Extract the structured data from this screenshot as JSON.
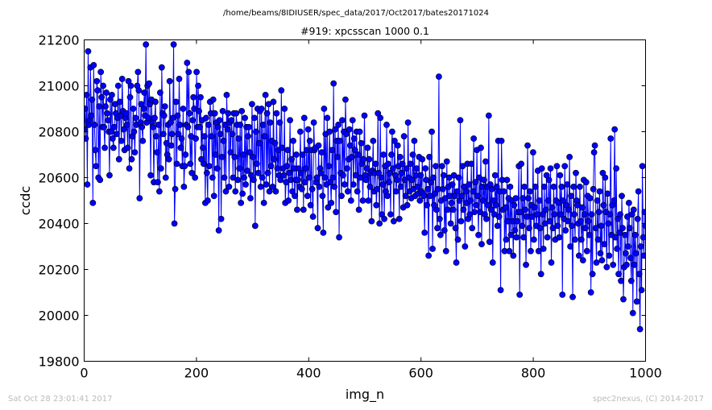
{
  "page": {
    "suptitle": "/home/beams/8IDIUSER/spec_data/2017/Oct2017/bates20171024",
    "footer_left": "Sat Oct 28 23:01:41 2017",
    "footer_right": "spec2nexus, (C) 2014-2017"
  },
  "chart_data": {
    "type": "line",
    "title": "#919: xpcsscan 1000 0.1",
    "xlabel": "img_n",
    "ylabel": "ccdc",
    "xlim": [
      0,
      1000
    ],
    "ylim": [
      19800,
      21200
    ],
    "xticks": [
      0,
      200,
      400,
      600,
      800,
      1000
    ],
    "yticks": [
      19800,
      20000,
      20200,
      20400,
      20600,
      20800,
      21000,
      21200
    ],
    "xtick_labels": [
      "0",
      "200",
      "400",
      "600",
      "800",
      "1000"
    ],
    "ytick_labels": [
      "19800",
      "20000",
      "20200",
      "20400",
      "20600",
      "20800",
      "21000",
      "21200"
    ],
    "grid": false,
    "markers": "filled circles joined by line",
    "color": "#0000ff",
    "series": [
      {
        "values": [
          20810,
          20900,
          20770,
          20960,
          20570,
          21150,
          20830,
          20850,
          21080,
          20870,
          20940,
          20490,
          21090,
          20830,
          20720,
          20650,
          21020,
          20980,
          20600,
          20910,
          20590,
          21060,
          20950,
          20820,
          21000,
          20820,
          20730,
          20910,
          20970,
          20880,
          20850,
          20800,
          20610,
          20940,
          20800,
          20960,
          20770,
          20730,
          20820,
          20920,
          20880,
          20790,
          20860,
          21000,
          20680,
          20930,
          20870,
          20760,
          21030,
          20890,
          20810,
          20720,
          20860,
          20880,
          20830,
          20730,
          21020,
          20640,
          20950,
          21000,
          20680,
          20780,
          20900,
          20800,
          20710,
          20860,
          20830,
          21000,
          21060,
          20980,
          20510,
          20840,
          20920,
          20820,
          20760,
          20900,
          20970,
          20870,
          21180,
          20840,
          21000,
          20860,
          21010,
          20920,
          20610,
          20940,
          20840,
          20820,
          20580,
          20860,
          20930,
          20780,
          20710,
          20580,
          20830,
          20540,
          20970,
          20640,
          21080,
          20880,
          20790,
          20870,
          20910,
          20600,
          20750,
          20700,
          20830,
          20680,
          21020,
          20840,
          20740,
          20790,
          20860,
          21180,
          20400,
          20550,
          20930,
          20660,
          20870,
          20790,
          21030,
          20830,
          20730,
          20770,
          20650,
          20900,
          20560,
          20650,
          20700,
          20830,
          21100,
          20820,
          21060,
          20880,
          20660,
          20780,
          20620,
          20850,
          20950,
          20900,
          20600,
          20770,
          21060,
          20820,
          21000,
          20890,
          20820,
          20950,
          20680,
          20850,
          20730,
          20660,
          20780,
          20490,
          20860,
          20620,
          20500,
          20830,
          20650,
          20930,
          20880,
          20780,
          20600,
          20940,
          20520,
          20880,
          20700,
          20840,
          20640,
          20820,
          20370,
          20850,
          20790,
          20420,
          20690,
          20890,
          20760,
          20600,
          20830,
          20540,
          20960,
          20810,
          20880,
          20560,
          20840,
          20710,
          20850,
          20790,
          20600,
          20880,
          20690,
          20540,
          20880,
          20830,
          20590,
          20770,
          20640,
          20830,
          20490,
          20890,
          20530,
          20700,
          20600,
          20860,
          20570,
          20820,
          20630,
          20780,
          20820,
          20710,
          20510,
          20610,
          20920,
          20690,
          20590,
          20860,
          20390,
          20800,
          20660,
          20900,
          20620,
          20750,
          20890,
          20560,
          20900,
          20600,
          20830,
          20490,
          20780,
          20960,
          20570,
          20880,
          20620,
          20920,
          20540,
          20840,
          20650,
          20760,
          20560,
          20930,
          20680,
          20750,
          20540,
          20880,
          20640,
          20720,
          20610,
          20840,
          20590,
          20980,
          20730,
          20640,
          20610,
          20900,
          20490,
          20580,
          20650,
          20720,
          20500,
          20620,
          20850,
          20590,
          20680,
          20540,
          20760,
          20640,
          20520,
          20590,
          20700,
          20460,
          20590,
          20640,
          20560,
          20800,
          20620,
          20550,
          20700,
          20460,
          20860,
          20580,
          20640,
          20720,
          20520,
          20810,
          20600,
          20760,
          20480,
          20720,
          20550,
          20430,
          20840,
          20720,
          20730,
          20580,
          20600,
          20380,
          20740,
          20560,
          20640,
          20620,
          20710,
          20520,
          20360,
          20900,
          20600,
          20790,
          20570,
          20860,
          20470,
          20650,
          20800,
          20580,
          20490,
          20720,
          20600,
          21010,
          20560,
          20810,
          20450,
          20760,
          20690,
          20830,
          20340,
          20760,
          20620,
          20520,
          20850,
          20610,
          20800,
          20570,
          20940,
          20790,
          20640,
          20540,
          20680,
          20810,
          20740,
          20500,
          20690,
          20850,
          20570,
          20770,
          20720,
          20610,
          20800,
          20540,
          20700,
          20460,
          20800,
          20600,
          20750,
          20660,
          20500,
          20680,
          20870,
          20610,
          20590,
          20640,
          20730,
          20500,
          20680,
          20560,
          20620,
          20410,
          20630,
          20760,
          20540,
          20620,
          20660,
          20480,
          20550,
          20880,
          20620,
          20400,
          20860,
          20600,
          20440,
          20570,
          20700,
          20420,
          20650,
          20540,
          20830,
          20520,
          20660,
          20580,
          20620,
          20440,
          20700,
          20800,
          20640,
          20410,
          20760,
          20610,
          20540,
          20590,
          20740,
          20650,
          20420,
          20690,
          20560,
          20620,
          20660,
          20470,
          20780,
          20590,
          20520,
          20640,
          20480,
          20840,
          20600,
          20540,
          20660,
          20510,
          20590,
          20700,
          20550,
          20760,
          20520,
          20610,
          20640,
          20560,
          20530,
          20690,
          20500,
          20610,
          20540,
          20680,
          20530,
          20520,
          20360,
          20640,
          20590,
          20480,
          20550,
          20260,
          20690,
          20520,
          20580,
          20800,
          20290,
          20600,
          20480,
          20530,
          20650,
          20460,
          20380,
          20550,
          21040,
          20420,
          20350,
          20500,
          20650,
          20550,
          20610,
          20370,
          20510,
          20280,
          20670,
          20460,
          20560,
          20600,
          20520,
          20400,
          20490,
          20570,
          20460,
          20610,
          20520,
          20380,
          20230,
          20540,
          20330,
          20600,
          20500,
          20850,
          20410,
          20520,
          20650,
          20460,
          20560,
          20300,
          20540,
          20490,
          20660,
          20420,
          20570,
          20440,
          20500,
          20660,
          20380,
          20540,
          20770,
          20450,
          20580,
          20480,
          20720,
          20520,
          20350,
          20600,
          20450,
          20730,
          20310,
          20560,
          20500,
          20590,
          20440,
          20670,
          20420,
          20560,
          20480,
          20870,
          20320,
          20570,
          20460,
          20550,
          20230,
          20500,
          20440,
          20610,
          20480,
          20560,
          20390,
          20760,
          20430,
          20540,
          20110,
          20760,
          20590,
          20460,
          20540,
          20280,
          20470,
          20330,
          20590,
          20410,
          20510,
          20280,
          20560,
          20350,
          20500,
          20410,
          20260,
          20480,
          20370,
          20510,
          20340,
          20410,
          20450,
          20650,
          20090,
          20450,
          20660,
          20390,
          20510,
          20340,
          20560,
          20460,
          20220,
          20430,
          20740,
          20510,
          20380,
          20540,
          20280,
          20480,
          20430,
          20710,
          20330,
          20470,
          20560,
          20390,
          20440,
          20630,
          20280,
          20500,
          20380,
          20180,
          20640,
          20440,
          20290,
          20560,
          20400,
          20460,
          20610,
          20340,
          20500,
          20590,
          20410,
          20640,
          20230,
          20470,
          20380,
          20560,
          20440,
          20330,
          20500,
          20650,
          20390,
          20490,
          20340,
          20610,
          20440,
          20560,
          20090,
          20500,
          20420,
          20650,
          20370,
          20480,
          20570,
          20410,
          20460,
          20690,
          20300,
          20520,
          20390,
          20080,
          20560,
          20440,
          20330,
          20620,
          20500,
          20480,
          20400,
          20260,
          20560,
          20410,
          20330,
          20470,
          20240,
          20590,
          20440,
          20380,
          20580,
          20280,
          20520,
          20410,
          20350,
          20510,
          20100,
          20440,
          20180,
          20550,
          20710,
          20740,
          20380,
          20230,
          20500,
          20330,
          20450,
          20540,
          20270,
          20390,
          20240,
          20620,
          20480,
          20310,
          20600,
          20450,
          20210,
          20530,
          20400,
          20260,
          20440,
          20770,
          20350,
          20480,
          20220,
          20500,
          20810,
          20340,
          20640,
          20290,
          20420,
          20180,
          20360,
          20440,
          20150,
          20520,
          20380,
          20070,
          20210,
          20350,
          20270,
          20220,
          20430,
          20300,
          20490,
          20380,
          20250,
          20150,
          20440,
          20010,
          20460,
          20220,
          20350,
          20270,
          20060,
          20420,
          20540,
          20180,
          19940,
          20300,
          20110,
          20650,
          20340,
          20260,
          20450,
          20390
        ]
      }
    ]
  }
}
